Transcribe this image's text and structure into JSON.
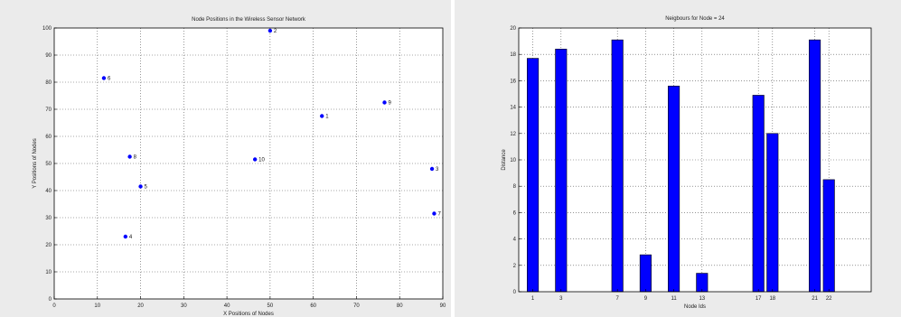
{
  "chart_data": [
    {
      "type": "scatter",
      "title": "Node Positions in the Wireless Sensor Network",
      "xlabel": "X Positions of Nodes",
      "ylabel": "Y Positions of Nodes",
      "xlim": [
        0,
        90
      ],
      "ylim": [
        0,
        100
      ],
      "xticks": [
        0,
        10,
        20,
        30,
        40,
        50,
        60,
        70,
        80,
        90
      ],
      "yticks": [
        0,
        10,
        20,
        30,
        40,
        50,
        60,
        70,
        80,
        90,
        100
      ],
      "grid": true,
      "marker_color": "#0000ff",
      "points": [
        {
          "label": "1",
          "x": 62,
          "y": 67.5
        },
        {
          "label": "2",
          "x": 50,
          "y": 99
        },
        {
          "label": "3",
          "x": 87.5,
          "y": 48
        },
        {
          "label": "4",
          "x": 16.5,
          "y": 23
        },
        {
          "label": "5",
          "x": 20,
          "y": 41.5
        },
        {
          "label": "6",
          "x": 11.5,
          "y": 81.5
        },
        {
          "label": "7",
          "x": 88,
          "y": 31.5
        },
        {
          "label": "8",
          "x": 17.5,
          "y": 52.5
        },
        {
          "label": "9",
          "x": 76.5,
          "y": 72.5
        },
        {
          "label": "10",
          "x": 46.5,
          "y": 51.5
        }
      ]
    },
    {
      "type": "bar",
      "title": "Neigbours for Node = 24",
      "xlabel": "Node Ids",
      "ylabel": "Distance",
      "xlim": [
        0,
        25
      ],
      "ylim": [
        0,
        20
      ],
      "yticks": [
        0,
        2,
        4,
        6,
        8,
        10,
        12,
        14,
        16,
        18,
        20
      ],
      "grid": true,
      "bar_color": "#0000ff",
      "categories": [
        "1",
        "3",
        "7",
        "9",
        "11",
        "13",
        "17",
        "18",
        "21",
        "22"
      ],
      "values": [
        17.7,
        18.4,
        19.1,
        2.8,
        15.6,
        1.4,
        14.9,
        12.0,
        19.1,
        8.5
      ]
    }
  ]
}
